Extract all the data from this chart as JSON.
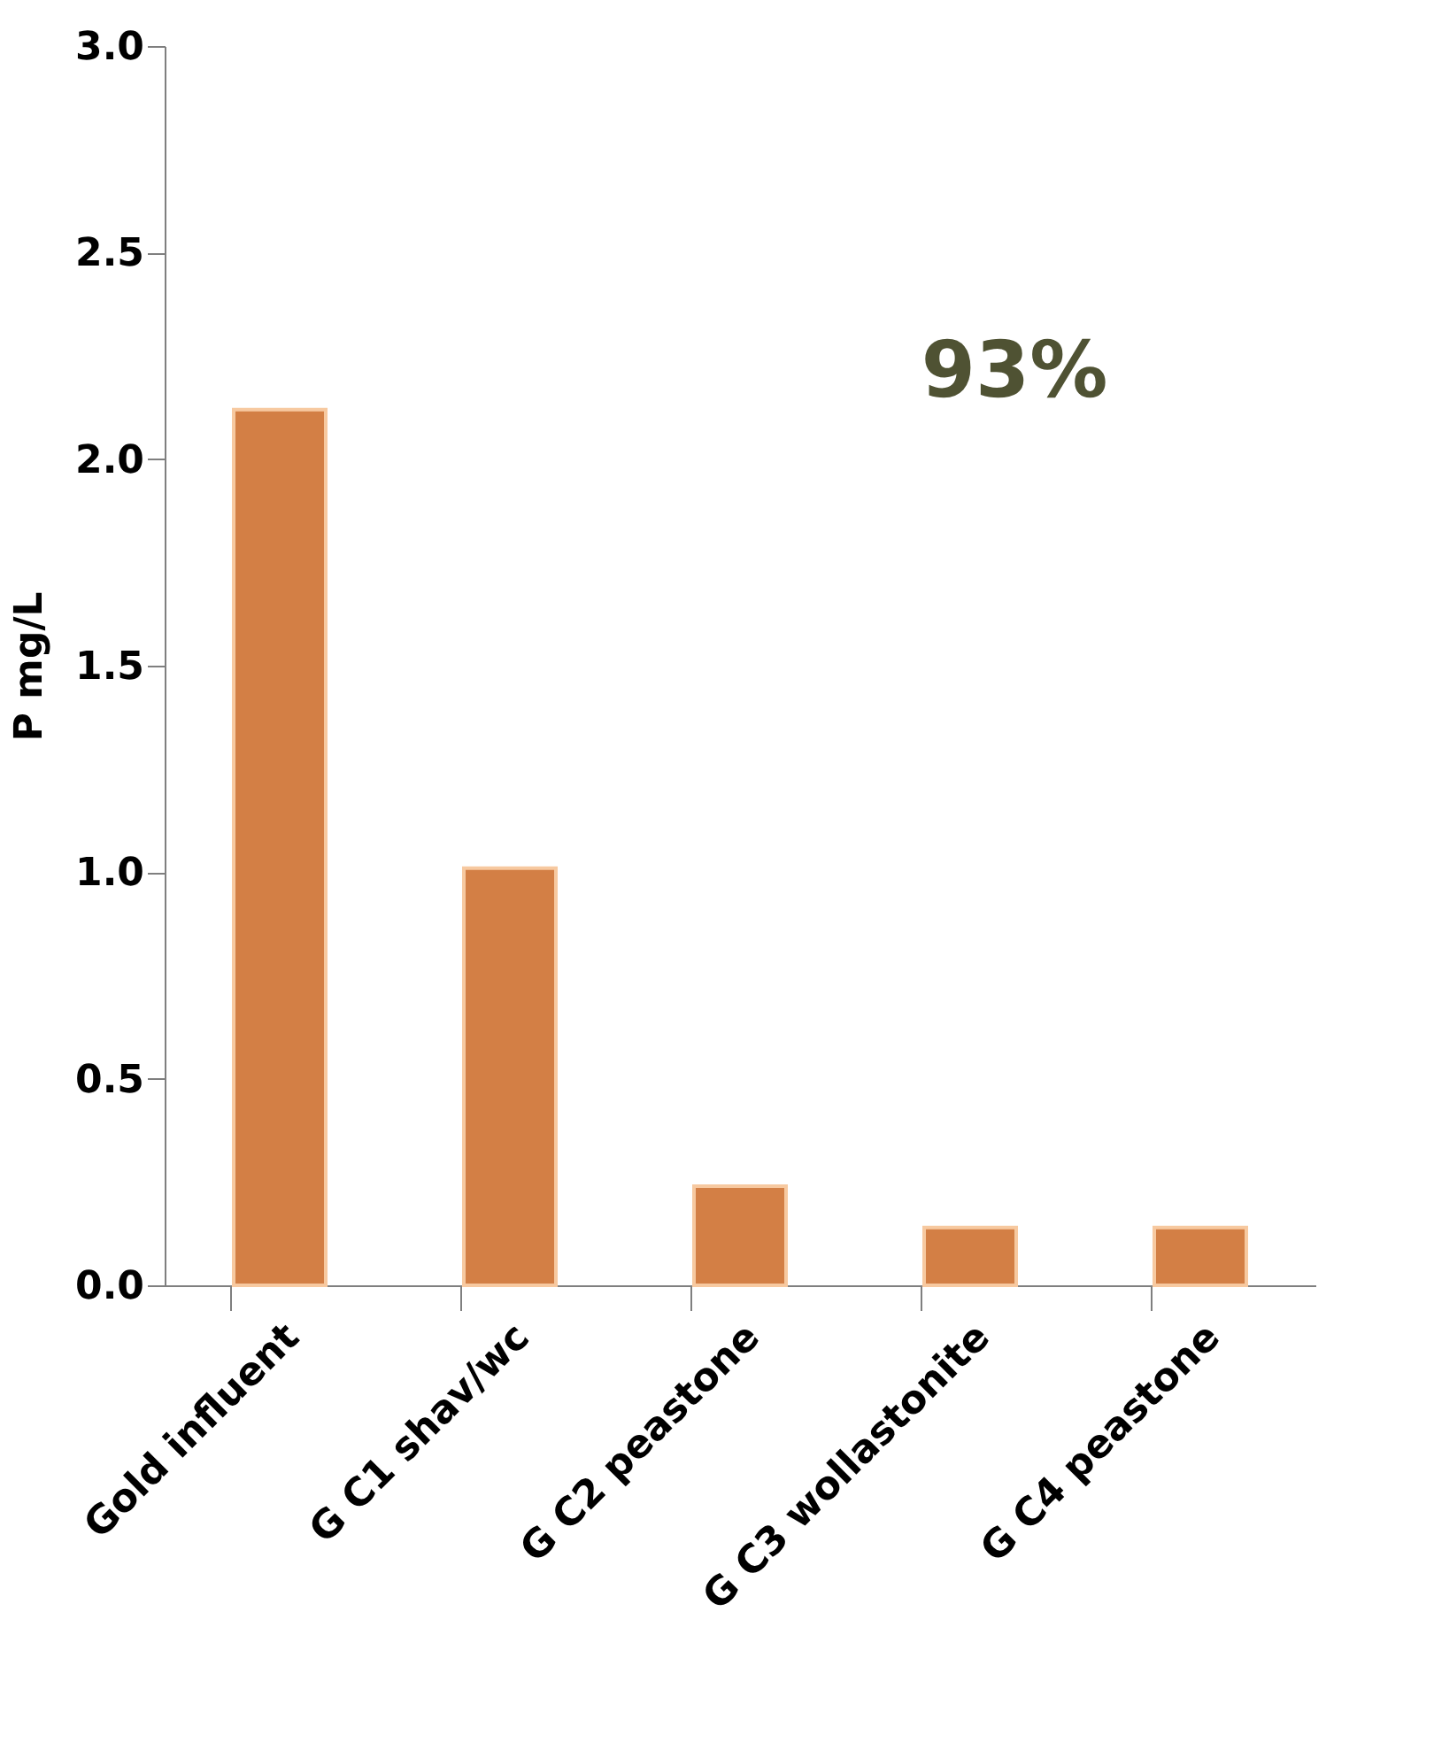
{
  "chart_data": {
    "type": "bar",
    "ylabel": "P mg/L",
    "categories": [
      "Gold influent",
      "G C1  shav/wc",
      "G C2 peastone",
      "G C3 wollastonite",
      "G C4 peastone"
    ],
    "values": [
      2.12,
      1.01,
      0.24,
      0.14,
      0.14
    ],
    "color": "#d37f45",
    "ylim": [
      0,
      3.0
    ],
    "yticks": [
      {
        "value": 0,
        "label": "0.0"
      },
      {
        "value": 0.5,
        "label": "0.5"
      },
      {
        "value": 1.0,
        "label": "1.0"
      },
      {
        "value": 1.5,
        "label": "1.5"
      },
      {
        "value": 2.0,
        "label": "2.0"
      },
      {
        "value": 2.5,
        "label": "2.5"
      },
      {
        "value": 3.0,
        "label": "3.0"
      }
    ],
    "grid": false,
    "annotations": [
      "93%"
    ]
  }
}
